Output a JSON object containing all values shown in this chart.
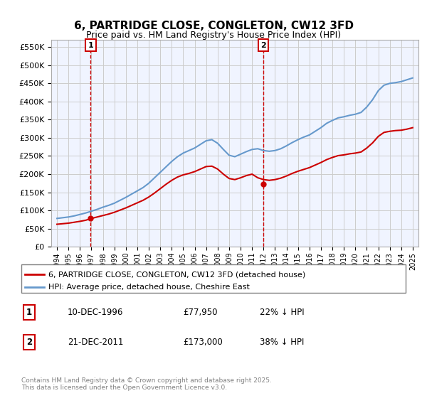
{
  "title": "6, PARTRIDGE CLOSE, CONGLETON, CW12 3FD",
  "subtitle": "Price paid vs. HM Land Registry's House Price Index (HPI)",
  "ylabel_ticks": [
    "£0",
    "£50K",
    "£100K",
    "£150K",
    "£200K",
    "£250K",
    "£300K",
    "£350K",
    "£400K",
    "£450K",
    "£500K",
    "£550K"
  ],
  "ytick_values": [
    0,
    50000,
    100000,
    150000,
    200000,
    250000,
    300000,
    350000,
    400000,
    450000,
    500000,
    550000
  ],
  "ylim": [
    0,
    570000
  ],
  "xlim_start": 1993.5,
  "xlim_end": 2025.5,
  "xtick_years": [
    1994,
    1995,
    1996,
    1997,
    1998,
    1999,
    2000,
    2001,
    2002,
    2003,
    2004,
    2005,
    2006,
    2007,
    2008,
    2009,
    2010,
    2011,
    2012,
    2013,
    2014,
    2015,
    2016,
    2017,
    2018,
    2019,
    2020,
    2021,
    2022,
    2023,
    2024,
    2025
  ],
  "sale1_x": 1996.94,
  "sale1_y": 77950,
  "sale1_label": "1",
  "sale2_x": 2011.97,
  "sale2_y": 173000,
  "sale2_label": "2",
  "red_line_color": "#cc0000",
  "blue_line_color": "#6699cc",
  "dashed_line_color": "#cc0000",
  "background_color": "#ffffff",
  "grid_color": "#cccccc",
  "sale_marker_color": "#cc0000",
  "marker_box_color": "#cc0000",
  "legend_line1": "6, PARTRIDGE CLOSE, CONGLETON, CW12 3FD (detached house)",
  "legend_line2": "HPI: Average price, detached house, Cheshire East",
  "table_row1": [
    "1",
    "10-DEC-1996",
    "£77,950",
    "22% ↓ HPI"
  ],
  "table_row2": [
    "2",
    "21-DEC-2011",
    "£173,000",
    "38% ↓ HPI"
  ],
  "footer": "Contains HM Land Registry data © Crown copyright and database right 2025.\nThis data is licensed under the Open Government Licence v3.0.",
  "hpi_x": [
    1994,
    1994.5,
    1995,
    1995.5,
    1996,
    1996.5,
    1997,
    1997.5,
    1998,
    1998.5,
    1999,
    1999.5,
    2000,
    2000.5,
    2001,
    2001.5,
    2002,
    2002.5,
    2003,
    2003.5,
    2004,
    2004.5,
    2005,
    2005.5,
    2006,
    2006.5,
    2007,
    2007.5,
    2008,
    2008.5,
    2009,
    2009.5,
    2010,
    2010.5,
    2011,
    2011.5,
    2012,
    2012.5,
    2013,
    2013.5,
    2014,
    2014.5,
    2015,
    2015.5,
    2016,
    2016.5,
    2017,
    2017.5,
    2018,
    2018.5,
    2019,
    2019.5,
    2020,
    2020.5,
    2021,
    2021.5,
    2022,
    2022.5,
    2023,
    2023.5,
    2024,
    2024.5,
    2025
  ],
  "hpi_y": [
    78000,
    80000,
    82000,
    85000,
    89000,
    93000,
    98000,
    103000,
    109000,
    114000,
    120000,
    128000,
    136000,
    145000,
    154000,
    163000,
    175000,
    190000,
    205000,
    220000,
    235000,
    248000,
    258000,
    265000,
    272000,
    282000,
    292000,
    295000,
    285000,
    268000,
    252000,
    248000,
    255000,
    262000,
    268000,
    270000,
    265000,
    263000,
    265000,
    270000,
    278000,
    287000,
    295000,
    302000,
    308000,
    318000,
    328000,
    340000,
    348000,
    355000,
    358000,
    362000,
    365000,
    370000,
    385000,
    405000,
    430000,
    445000,
    450000,
    452000,
    455000,
    460000,
    465000
  ],
  "red_x": [
    1994,
    1994.5,
    1995,
    1995.5,
    1996,
    1996.5,
    1997,
    1997.5,
    1998,
    1998.5,
    1999,
    1999.5,
    2000,
    2000.5,
    2001,
    2001.5,
    2002,
    2002.5,
    2003,
    2003.5,
    2004,
    2004.5,
    2005,
    2005.5,
    2006,
    2006.5,
    2007,
    2007.5,
    2008,
    2008.5,
    2009,
    2009.5,
    2010,
    2010.5,
    2011,
    2011.5,
    2012,
    2012.5,
    2013,
    2013.5,
    2014,
    2014.5,
    2015,
    2015.5,
    2016,
    2016.5,
    2017,
    2017.5,
    2018,
    2018.5,
    2019,
    2019.5,
    2020,
    2020.5,
    2021,
    2021.5,
    2022,
    2022.5,
    2023,
    2023.5,
    2024,
    2024.5,
    2025
  ],
  "red_y": [
    62000,
    63500,
    65000,
    67500,
    70000,
    73000,
    77950,
    82000,
    86000,
    90000,
    95000,
    101000,
    107000,
    114000,
    121000,
    128000,
    137000,
    148000,
    160000,
    172000,
    183000,
    192000,
    198000,
    202000,
    207000,
    214000,
    221000,
    222000,
    214000,
    200000,
    188000,
    185000,
    190000,
    196000,
    200000,
    190000,
    185000,
    183000,
    185000,
    189000,
    195000,
    202000,
    208000,
    213000,
    218000,
    225000,
    232000,
    240000,
    246000,
    251000,
    253000,
    256000,
    258000,
    261000,
    272000,
    286000,
    304000,
    315000,
    318000,
    320000,
    321000,
    324000,
    328000
  ]
}
